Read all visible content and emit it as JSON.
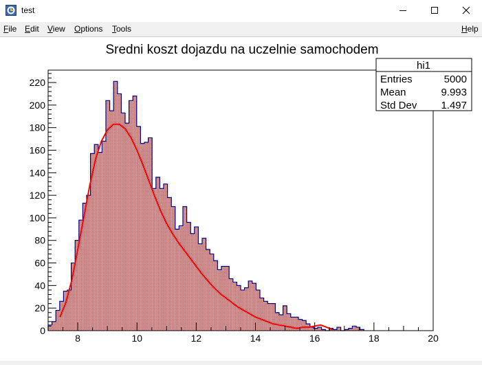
{
  "window": {
    "title": "test"
  },
  "menu": {
    "items": [
      {
        "label": "File",
        "u": "F",
        "rest": "ile"
      },
      {
        "label": "Edit",
        "u": "E",
        "rest": "dit"
      },
      {
        "label": "View",
        "u": "V",
        "rest": "iew"
      },
      {
        "label": "Options",
        "u": "O",
        "rest": "ptions"
      },
      {
        "label": "Tools",
        "u": "T",
        "rest": "ools"
      }
    ],
    "help": {
      "label": "Help",
      "u": "H",
      "rest": "elp"
    }
  },
  "stats": {
    "title": "hi1",
    "rows": [
      {
        "label": "Entries",
        "value": "5000"
      },
      {
        "label": "Mean",
        "value": "9.993"
      },
      {
        "label": "Std Dev",
        "value": "1.497"
      }
    ]
  },
  "colors": {
    "hist_line": "#000080",
    "hist_fill": "#b53a3a",
    "fit_line": "#ff0000"
  },
  "chart_data": {
    "type": "bar",
    "title": "Sredni koszt dojazdu na uczelnie samochodem",
    "xlabel": "",
    "ylabel": "",
    "xlim": [
      7,
      20
    ],
    "ylim": [
      0,
      231
    ],
    "bin_width": 0.13,
    "x_ticks": [
      8,
      10,
      12,
      14,
      16,
      18,
      20
    ],
    "y_ticks": [
      0,
      20,
      40,
      60,
      80,
      100,
      120,
      140,
      160,
      180,
      200,
      220
    ],
    "values": [
      5,
      8,
      18,
      26,
      35,
      36,
      60,
      80,
      98,
      113,
      120,
      157,
      165,
      158,
      168,
      204,
      195,
      221,
      210,
      193,
      184,
      204,
      208,
      181,
      166,
      167,
      171,
      126,
      136,
      126,
      130,
      118,
      110,
      90,
      93,
      110,
      96,
      86,
      92,
      77,
      82,
      72,
      68,
      62,
      54,
      57,
      57,
      46,
      43,
      40,
      36,
      38,
      44,
      42,
      36,
      29,
      26,
      24,
      24,
      16,
      14,
      22,
      15,
      12,
      12,
      10,
      9,
      6,
      3,
      2,
      3,
      1,
      0,
      2,
      1,
      3,
      0,
      1,
      2,
      4,
      3,
      1
    ],
    "fit": {
      "name": "",
      "x": [
        7.4,
        7.6,
        7.8,
        8.0,
        8.2,
        8.4,
        8.6,
        8.8,
        9.0,
        9.2,
        9.4,
        9.6,
        9.8,
        10.0,
        10.2,
        10.4,
        10.6,
        10.8,
        11.0,
        11.2,
        11.4,
        11.6,
        11.8,
        12.0,
        12.2,
        12.4,
        12.6,
        12.8,
        13.0,
        13.2,
        13.4,
        13.6,
        13.8,
        14.0,
        14.2,
        14.4,
        14.6,
        14.8,
        15.0,
        15.2,
        15.4,
        15.6,
        15.8,
        16.0,
        16.2,
        16.4,
        16.6
      ],
      "y": [
        12,
        25,
        45,
        72,
        100,
        128,
        152,
        168,
        178,
        183,
        183,
        179,
        171,
        160,
        147,
        133,
        119,
        106,
        95,
        86,
        78,
        71,
        64,
        57,
        50,
        44,
        38,
        33,
        29,
        25,
        21,
        18,
        15,
        12,
        10,
        8,
        6,
        5,
        4,
        3,
        2,
        3,
        3,
        4,
        5,
        3,
        1
      ]
    }
  }
}
